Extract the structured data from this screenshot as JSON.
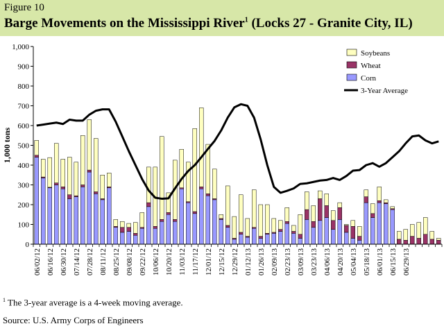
{
  "figure_label": "Figure 10",
  "title": "Barge Movements on the Mississippi River",
  "title_superscript": "1",
  "title_suffix": " (Locks 27 - Granite City, IL)",
  "footnote_marker": "1",
  "footnote_text": " The 3-year average is a 4-week moving average.",
  "source": "Source:  U.S. Army Corps of Engineers",
  "colors": {
    "header_bg": "#d7e7a8",
    "corn": "#9999ff",
    "wheat": "#993366",
    "soybeans": "#ffffc0",
    "average_line": "#000000"
  },
  "chart_data": {
    "type": "bar",
    "stacked": true,
    "ylabel": "1,000 tons",
    "ylim": [
      0,
      1000
    ],
    "yticks": [
      0,
      100,
      200,
      300,
      400,
      500,
      600,
      700,
      800,
      900,
      1000
    ],
    "ytick_labels": [
      "0",
      "100",
      "200",
      "300",
      "400",
      "500",
      "600",
      "700",
      "800",
      "900",
      "1,000"
    ],
    "grid": false,
    "legend_position": "top-right",
    "x_tick_labels": [
      "06/02/12",
      "06/16/12",
      "06/30/12",
      "07/14/12",
      "07/28/12",
      "08/11/12",
      "08/25/12",
      "09/08/12",
      "09/22/12",
      "10/06/12",
      "10/20/12",
      "11/03/12",
      "11/17/12",
      "12/01/12",
      "12/15/12",
      "12/29/12",
      "01/12/13",
      "01/26/13",
      "02/09/13",
      "02/23/13",
      "03/09/13",
      "03/23/13",
      "04/06/13",
      "04/20/13",
      "05/04/13",
      "05/18/13",
      "06/01/13",
      "06/15/13",
      "06/29/13"
    ],
    "series": [
      {
        "name": "Soybeans",
        "type": "bar",
        "values": [
          75,
          90,
          150,
          200,
          140,
          190,
          170,
          250,
          255,
          270,
          120,
          70,
          35,
          30,
          20,
          55,
          75,
          180,
          300,
          420,
          100,
          300,
          195,
          200,
          420,
          400,
          250,
          150,
          20,
          200,
          110,
          190,
          90,
          190,
          160,
          145,
          70,
          45,
          70,
          30,
          100,
          90,
          80,
          40,
          60,
          50,
          25,
          5,
          30,
          50,
          35,
          50,
          70,
          15,
          10,
          40,
          55,
          60,
          80,
          85,
          40,
          10
        ]
      },
      {
        "name": "Wheat",
        "type": "bar",
        "values": [
          10,
          5,
          3,
          10,
          10,
          20,
          5,
          10,
          10,
          10,
          5,
          5,
          5,
          25,
          20,
          10,
          5,
          20,
          10,
          10,
          10,
          10,
          5,
          5,
          10,
          10,
          10,
          5,
          5,
          10,
          5,
          10,
          5,
          5,
          10,
          5,
          5,
          10,
          10,
          10,
          20,
          50,
          30,
          110,
          60,
          45,
          60,
          35,
          60,
          20,
          30,
          20,
          10,
          5,
          5,
          25,
          20,
          40,
          30,
          50,
          25,
          20
        ]
      },
      {
        "name": "Corn",
        "type": "bar",
        "values": [
          440,
          335,
          285,
          300,
          280,
          230,
          240,
          290,
          365,
          255,
          225,
          285,
          85,
          60,
          65,
          45,
          80,
          190,
          80,
          115,
          150,
          115,
          280,
          210,
          155,
          280,
          245,
          225,
          125,
          85,
          25,
          50,
          35,
          80,
          30,
          50,
          55,
          65,
          105,
          55,
          30,
          125,
          85,
          120,
          135,
          75,
          125,
          60,
          30,
          20,
          210,
          135,
          210,
          205,
          175,
          0,
          0,
          0,
          0,
          0,
          0,
          0
        ]
      },
      {
        "name": "3-Year Average",
        "type": "line",
        "values": [
          600,
          605,
          610,
          615,
          608,
          630,
          625,
          625,
          655,
          675,
          682,
          682,
          620,
          545,
          470,
          400,
          330,
          272,
          235,
          230,
          232,
          282,
          330,
          370,
          400,
          440,
          482,
          522,
          575,
          640,
          692,
          708,
          700,
          640,
          530,
          400,
          290,
          260,
          270,
          282,
          305,
          308,
          315,
          322,
          325,
          335,
          325,
          345,
          372,
          375,
          400,
          410,
          392,
          410,
          440,
          470,
          510,
          545,
          550,
          525,
          510,
          520
        ]
      }
    ]
  }
}
